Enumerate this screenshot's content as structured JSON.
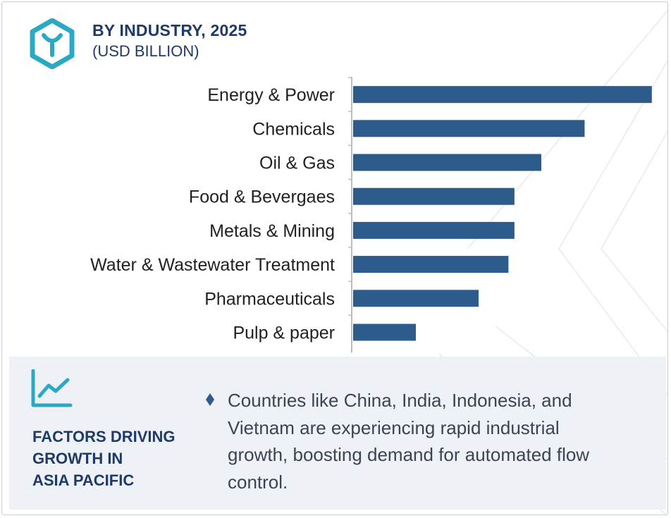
{
  "header": {
    "title": "BY INDUSTRY, 2025",
    "subtitle": "(USD BILLION)",
    "logo_icon": "hexagon-y-logo-icon"
  },
  "colors": {
    "bar": "#2d5b8c",
    "title": "#1f3a68",
    "accent": "#2aa8c4",
    "panel_bg": "#eef1f6",
    "body_text": "#3d4451"
  },
  "chart_data": {
    "type": "bar",
    "orientation": "horizontal",
    "title": "BY INDUSTRY, 2025",
    "subtitle": "(USD BILLION)",
    "categories": [
      "Energy & Power",
      "Chemicals",
      "Oil & Gas",
      "Food & Bevergaes",
      "Metals & Mining",
      "Water & Wastewater Treatment",
      "Pharmaceuticals",
      "Pulp & paper"
    ],
    "values": [
      10.0,
      7.75,
      6.3,
      5.4,
      5.4,
      5.2,
      4.2,
      2.1
    ],
    "xlim": [
      0,
      10.5
    ],
    "value_axis_visible": false,
    "grid": false,
    "legend": "none"
  },
  "factors": {
    "icon": "line-chart-trend-icon",
    "title_lines": [
      "FACTORS DRIVING",
      "GROWTH IN",
      "ASIA PACIFIC"
    ],
    "bullet_icon": "diamond-bullet-icon",
    "bullet_text": "Countries like China, India, Indonesia, and Vietnam are experiencing rapid industrial growth, boosting demand for automated flow control."
  }
}
